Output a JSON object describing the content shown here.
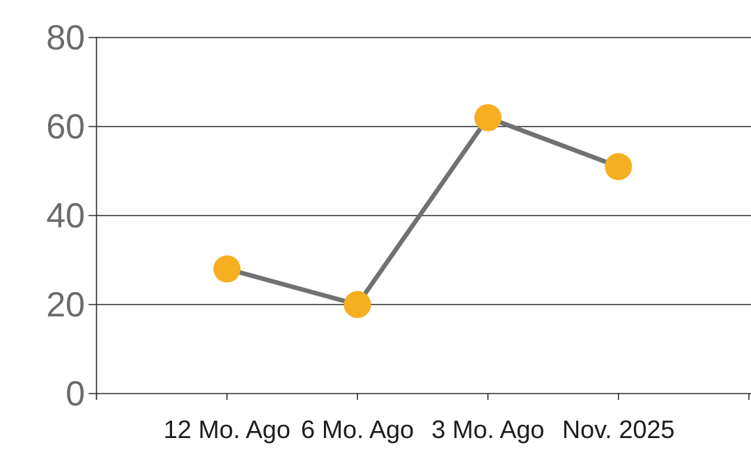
{
  "chart_data": {
    "type": "line",
    "title": "",
    "xlabel": "",
    "ylabel": "",
    "categories": [
      "12 Mo. Ago",
      "6 Mo. Ago",
      "3 Mo. Ago",
      "Nov. 2025"
    ],
    "series": [
      {
        "name": "values",
        "values": [
          28,
          20,
          62,
          51
        ]
      }
    ],
    "ylim": [
      0,
      80
    ],
    "yticks": [
      0,
      20,
      40,
      60,
      80
    ],
    "grid": true,
    "legend": false,
    "colors": {
      "marker": "#F5AF20",
      "line": "#717171",
      "axis": "#2B2B2B",
      "ytick_label": "#6B6B6B",
      "xtick_label": "#1E1E1E",
      "background": "#FFFFFF"
    }
  }
}
